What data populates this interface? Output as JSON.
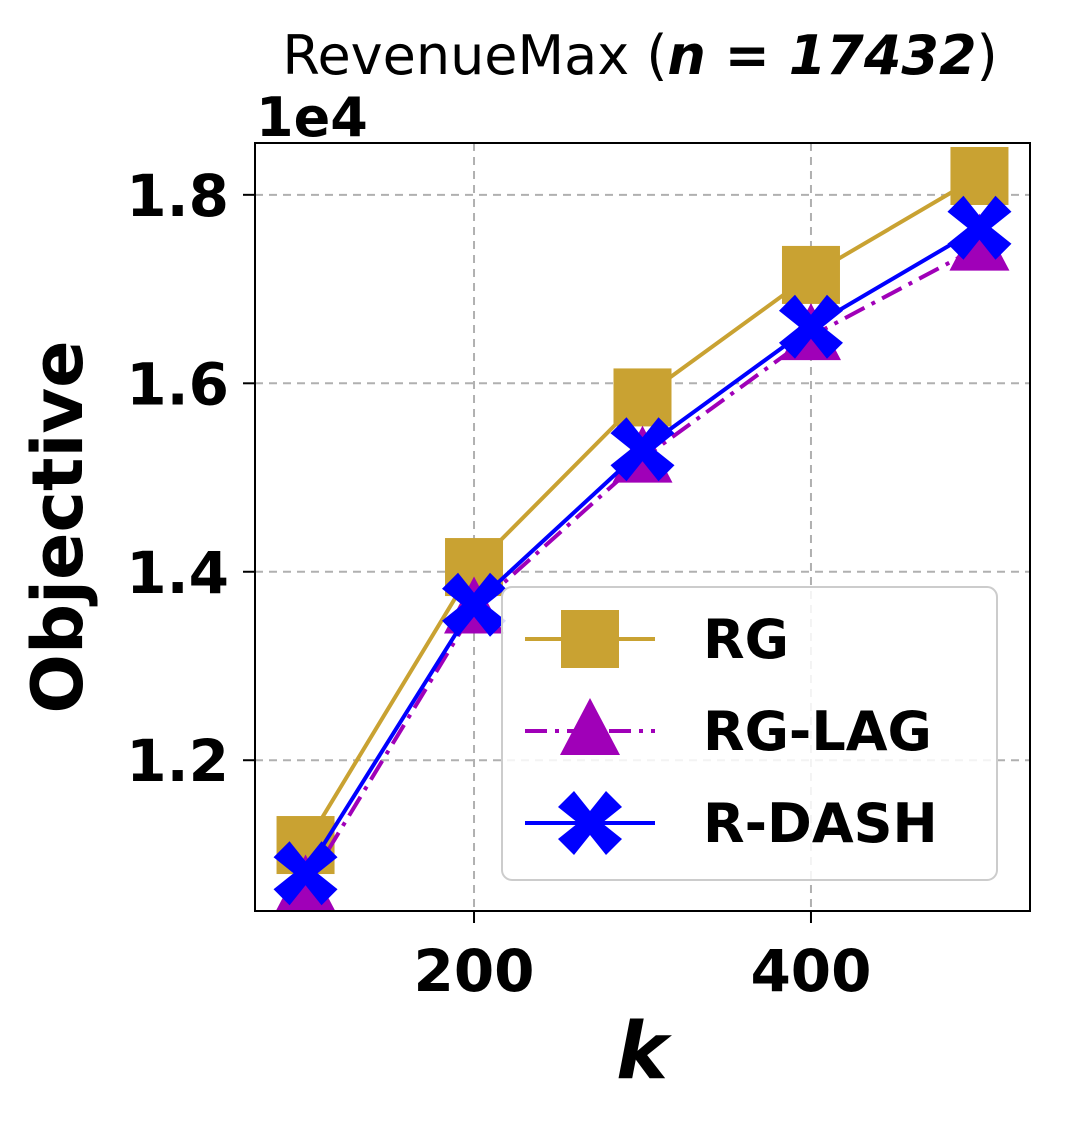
{
  "chart_data": {
    "type": "line",
    "title_main": "RevenueMax (",
    "title_math": "n = 17432",
    "title_close": ")",
    "offset_label": "1e4",
    "xlabel": "k",
    "ylabel": "Objective",
    "x": [
      100,
      200,
      300,
      400,
      500
    ],
    "xlim": [
      70,
      530
    ],
    "ylim": [
      10.4,
      18.55
    ],
    "x_ticks": [
      200,
      400
    ],
    "x_tick_labels": [
      "200",
      "400"
    ],
    "y_ticks": [
      12,
      14,
      16,
      18
    ],
    "y_tick_labels": [
      "1.2",
      "1.4",
      "1.6",
      "1.8"
    ],
    "grid": true,
    "legend_position": "bottom-right",
    "series": [
      {
        "name": "RG",
        "values": [
          11.1,
          14.05,
          15.85,
          17.15,
          18.2
        ],
        "color": "#C9A232",
        "marker": "square",
        "dash": "solid"
      },
      {
        "name": "RG-LAG",
        "values": [
          10.65,
          13.6,
          15.2,
          16.5,
          17.45
        ],
        "color": "#A000B8",
        "marker": "triangle",
        "dash": "dashdot"
      },
      {
        "name": "R-DASH",
        "values": [
          10.8,
          13.65,
          15.3,
          16.6,
          17.65
        ],
        "color": "#0000FF",
        "marker": "x",
        "dash": "solid"
      }
    ]
  }
}
